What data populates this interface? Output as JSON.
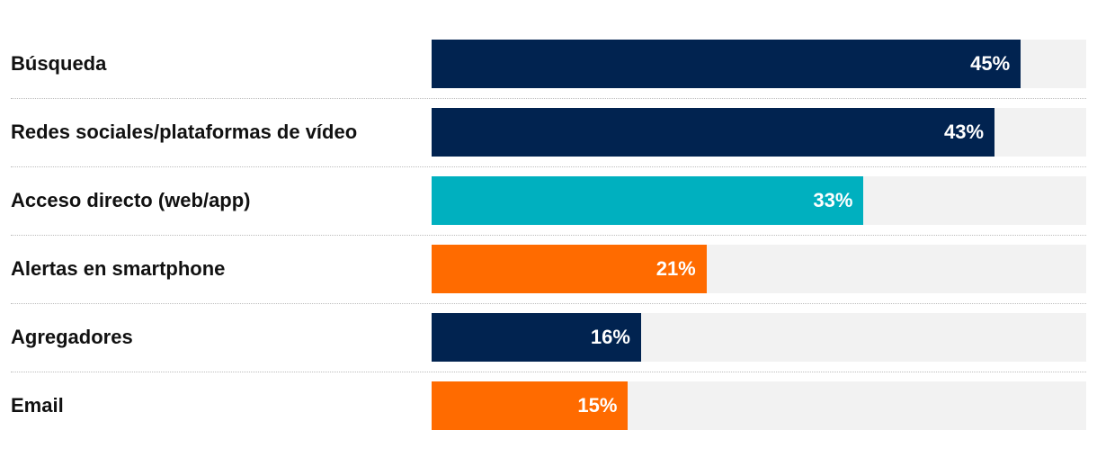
{
  "chart_data": {
    "type": "bar",
    "orientation": "horizontal",
    "categories": [
      "Búsqueda",
      "Redes sociales/plataformas de vídeo",
      "Acceso directo (web/app)",
      "Alertas en smartphone",
      "Agregadores",
      "Email"
    ],
    "values": [
      45,
      43,
      33,
      21,
      16,
      15
    ],
    "value_labels": [
      "45%",
      "43%",
      "33%",
      "21%",
      "16%",
      "15%"
    ],
    "bar_colors": [
      "#012350",
      "#012350",
      "#00b0bf",
      "#ff6b00",
      "#012350",
      "#ff6b00"
    ],
    "xlim": [
      0,
      50
    ],
    "unit": "%",
    "track_color": "#f2f2f2",
    "grid": false,
    "legend": "none"
  }
}
